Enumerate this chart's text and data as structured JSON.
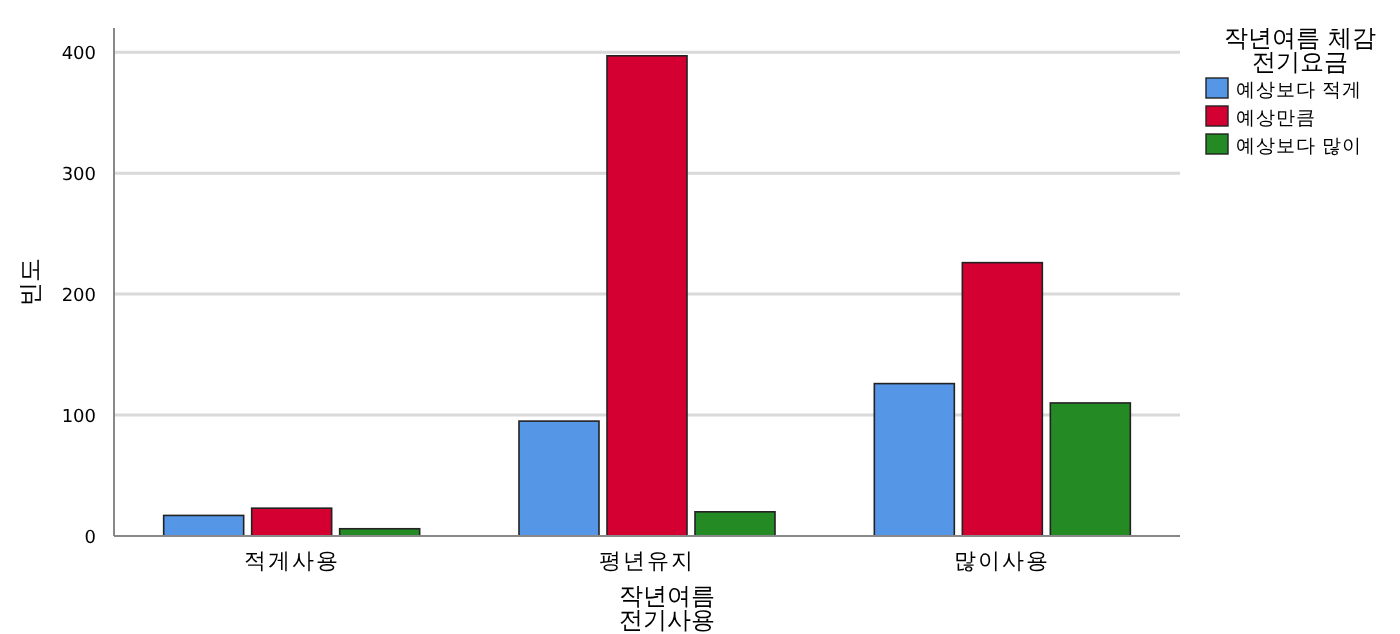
{
  "chart_data": {
    "type": "bar",
    "xlabel": "작년여름 전기사용",
    "ylabel": "빈도",
    "legend_title": "작년여름 체감 전기요금",
    "categories": [
      "적게사용",
      "평년유지",
      "많이사용"
    ],
    "series": [
      {
        "name": "예상보다 적게",
        "color": "#5596e6",
        "values": [
          17,
          95,
          126
        ]
      },
      {
        "name": "예상만큼",
        "color": "#d50032",
        "values": [
          23,
          397,
          226
        ]
      },
      {
        "name": "예상보다 많이",
        "color": "#248a24",
        "values": [
          6,
          20,
          110
        ]
      }
    ],
    "ylim": [
      0,
      420
    ],
    "yticks": [
      0,
      100,
      200,
      300,
      400
    ],
    "grid": "y",
    "legend": "top right"
  }
}
